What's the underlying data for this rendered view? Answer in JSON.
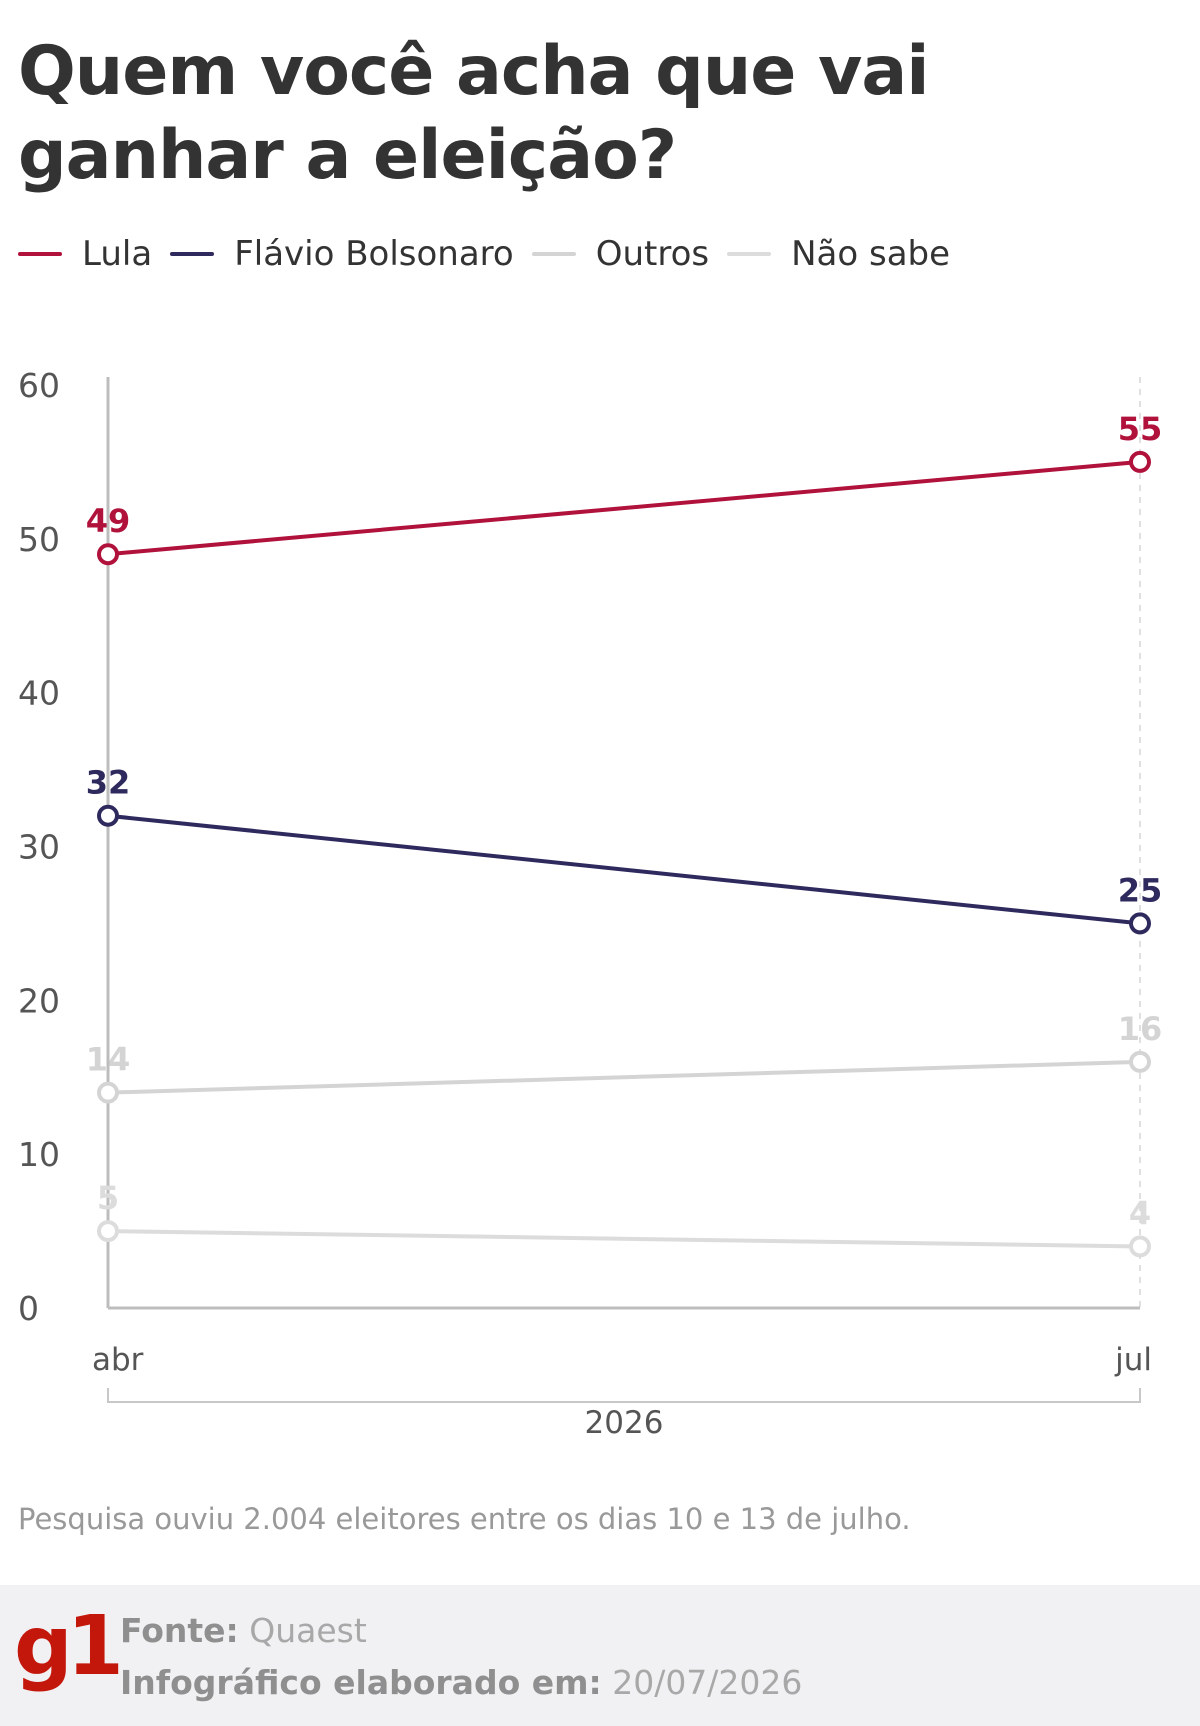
{
  "title": "Quem você acha que vai ganhar a eleição?",
  "note": "Pesquisa ouviu 2.004 eleitores entre os dias 10 e 13 de julho.",
  "footer": {
    "logo": "g1",
    "source_label": "Fonte:",
    "source_value": "Quaest",
    "date_label": "Infográfico elaborado em:",
    "date_value": "20/07/2026"
  },
  "chart_data": {
    "type": "line",
    "title": "Quem você acha que vai ganhar a eleição?",
    "categories": [
      "abr",
      "jul"
    ],
    "x_group_label": "2026",
    "ylim": [
      0,
      60
    ],
    "yticks": [
      0,
      10,
      20,
      30,
      40,
      50,
      60
    ],
    "grid": false,
    "legend_position": "top-left",
    "series": [
      {
        "name": "Lula",
        "color": "#b0123b",
        "values": [
          49,
          55
        ]
      },
      {
        "name": "Flávio Bolsonaro",
        "color": "#2f2a5e",
        "values": [
          32,
          25
        ]
      },
      {
        "name": "Outros",
        "color": "#d4d4d4",
        "values": [
          14,
          16
        ]
      },
      {
        "name": "Não sabe",
        "color": "#dcdcdc",
        "values": [
          5,
          4
        ]
      }
    ]
  }
}
